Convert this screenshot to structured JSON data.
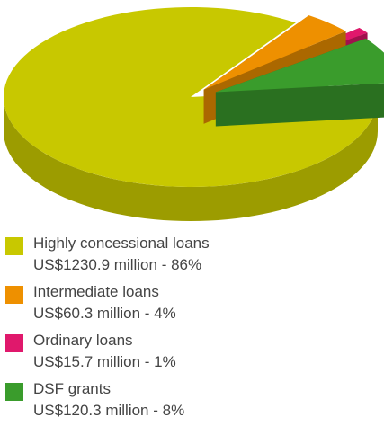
{
  "chart_data": {
    "type": "pie",
    "style": "3d-exploded",
    "slices": [
      {
        "name": "Highly concessional loans",
        "value": 1230.9,
        "percent": 86,
        "value_label": "US$1230.9 million - 86%",
        "color": "#c8c800"
      },
      {
        "name": "Intermediate loans",
        "value": 60.3,
        "percent": 4,
        "value_label": "US$60.3 million - 4%",
        "color": "#ee9000"
      },
      {
        "name": "Ordinary loans",
        "value": 15.7,
        "percent": 1,
        "value_label": "US$15.7 million - 1%",
        "color": "#e0186c"
      },
      {
        "name": "DSF grants",
        "value": 120.3,
        "percent": 8,
        "value_label": "US$120.3 million - 8%",
        "color": "#3a9c2c"
      }
    ],
    "legend_position": "bottom"
  }
}
